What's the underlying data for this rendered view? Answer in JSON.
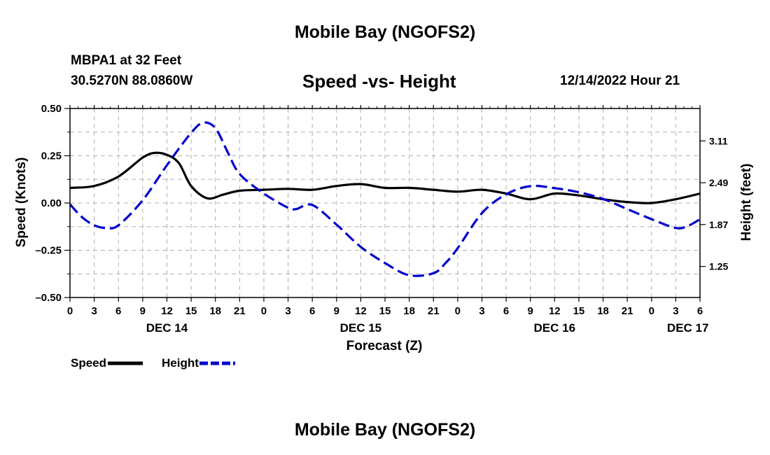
{
  "header": {
    "title": "Mobile Bay (NGOFS2)",
    "station": "MBPA1 at 32 Feet",
    "coords": "30.5270N  88.0860W",
    "chart_title": "Speed -vs- Height",
    "run_time": "12/14/2022 Hour 21"
  },
  "footer": {
    "title": "Mobile Bay (NGOFS2)"
  },
  "legend": {
    "speed_label": "Speed",
    "height_label": "Height"
  },
  "colors": {
    "speed": "#000000",
    "height": "#0000cc",
    "grid": "#b0b0b0"
  },
  "chart_data": {
    "type": "line",
    "title": "Speed -vs- Height",
    "xlabel": "Forecast (Z)",
    "ylabel": "Speed (Knots)",
    "y2label": "Height (feet)",
    "x_unit": "hours since DEC 14 00Z",
    "xlim": [
      0,
      78
    ],
    "ylim": [
      -0.5,
      0.5
    ],
    "y2lim": [
      0.79,
      3.59
    ],
    "x_ticks": [
      0,
      3,
      6,
      9,
      12,
      15,
      18,
      21,
      24,
      27,
      30,
      33,
      36,
      39,
      42,
      45,
      48,
      51,
      54,
      57,
      60,
      63,
      66,
      69,
      72,
      75,
      78
    ],
    "x_tick_labels": [
      "0",
      "3",
      "6",
      "9",
      "12",
      "15",
      "18",
      "21",
      "0",
      "3",
      "6",
      "9",
      "12",
      "15",
      "18",
      "21",
      "0",
      "3",
      "6",
      "9",
      "12",
      "15",
      "18",
      "21",
      "0",
      "3",
      "6"
    ],
    "date_labels": [
      {
        "label": "DEC 14",
        "x": 12
      },
      {
        "label": "DEC 15",
        "x": 36
      },
      {
        "label": "DEC 16",
        "x": 60
      },
      {
        "label": "DEC 17",
        "x": 76.5
      }
    ],
    "y_ticks": [
      0.5,
      0.25,
      0.0,
      -0.25,
      -0.5
    ],
    "y_tick_labels": [
      "0.50",
      "0.25",
      "0.00",
      "–0.25",
      "–0.50"
    ],
    "y2_ticks": [
      3.11,
      2.49,
      1.87,
      1.25
    ],
    "y2_tick_labels": [
      "3.11",
      "2.49",
      "1.87",
      "1.25"
    ],
    "grid": true,
    "series": [
      {
        "name": "Speed",
        "axis": "left",
        "style": "solid",
        "x": [
          0,
          3,
          6,
          9,
          10.5,
          12,
          13.5,
          15,
          17,
          19,
          21,
          24,
          27,
          30,
          33,
          36,
          39,
          42,
          45,
          48,
          51,
          54,
          57,
          60,
          63,
          66,
          69,
          72,
          75,
          78
        ],
        "values": [
          0.08,
          0.09,
          0.14,
          0.24,
          0.265,
          0.255,
          0.21,
          0.09,
          0.025,
          0.045,
          0.065,
          0.07,
          0.075,
          0.07,
          0.09,
          0.1,
          0.08,
          0.08,
          0.07,
          0.06,
          0.07,
          0.05,
          0.02,
          0.05,
          0.04,
          0.02,
          0.005,
          0.0,
          0.02,
          0.05
        ]
      },
      {
        "name": "Height",
        "axis": "right",
        "style": "dashed",
        "x": [
          0,
          1.5,
          3,
          4.5,
          6,
          9,
          12,
          15,
          16.5,
          18,
          19.5,
          21,
          24,
          27,
          28,
          30,
          33,
          36,
          39,
          42,
          45,
          46.5,
          48,
          51,
          54,
          57,
          60,
          63,
          66,
          69,
          72,
          75,
          76.5,
          78
        ],
        "values": [
          2.17,
          1.98,
          1.86,
          1.82,
          1.86,
          2.23,
          2.75,
          3.23,
          3.38,
          3.3,
          2.95,
          2.62,
          2.33,
          2.12,
          2.1,
          2.16,
          1.87,
          1.54,
          1.3,
          1.12,
          1.15,
          1.3,
          1.52,
          2.04,
          2.32,
          2.44,
          2.41,
          2.35,
          2.25,
          2.1,
          1.95,
          1.82,
          1.85,
          1.95
        ]
      }
    ]
  }
}
